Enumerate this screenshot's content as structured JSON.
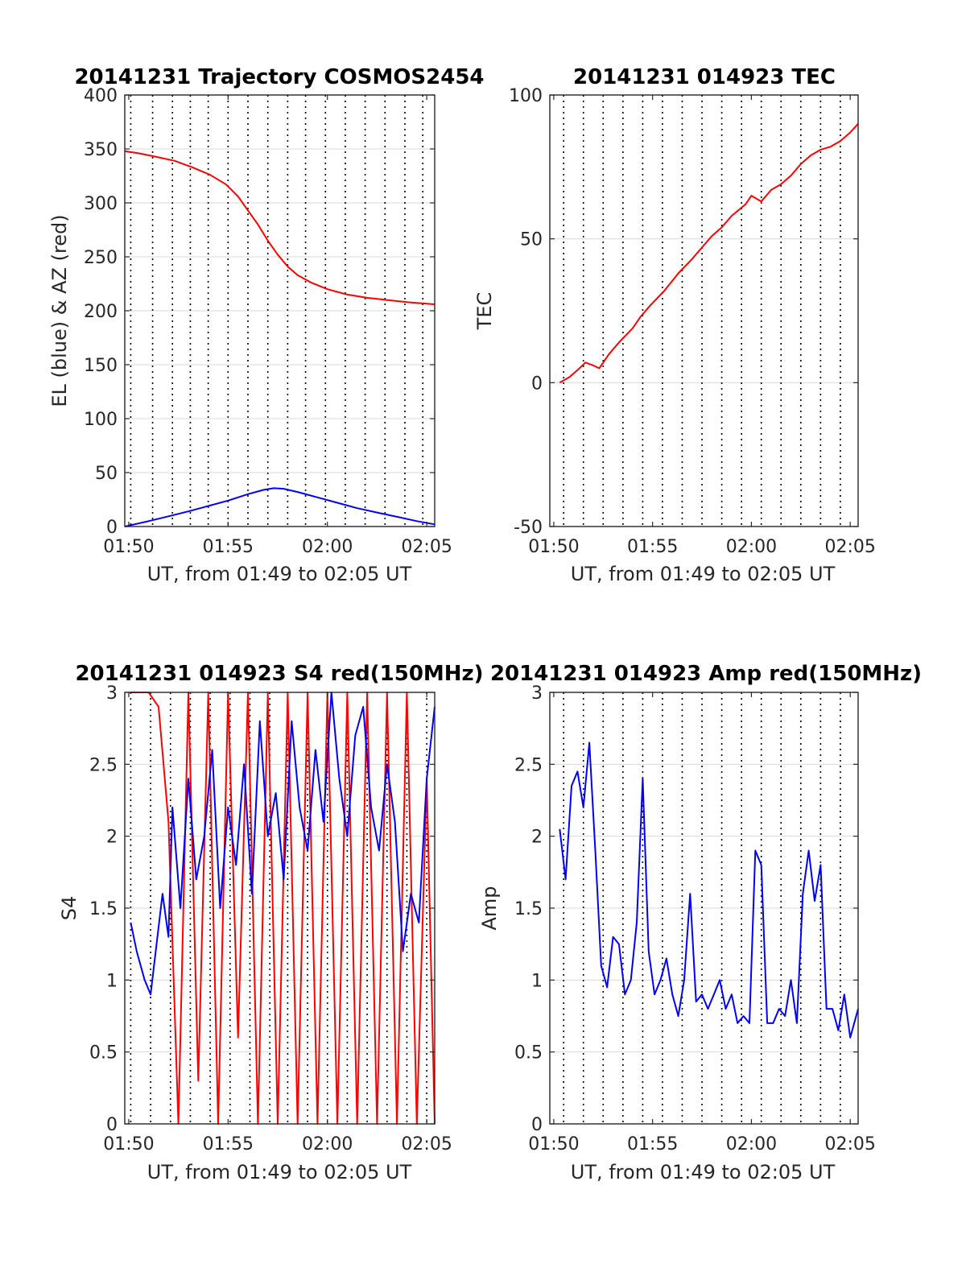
{
  "figure": {
    "background": "#ffffff",
    "grid_color": "#d9d9d9",
    "vline_color": "#000000",
    "axis_color": "#262626"
  },
  "chart_data": [
    {
      "type": "line",
      "title": "20141231 Trajectory COSMOS2454",
      "xlabel": "UT, from 01:49 to 02:05 UT",
      "ylabel": "EL (blue) & AZ (red)",
      "xlim": [
        109.8,
        125.4
      ],
      "ylim": [
        0,
        400
      ],
      "xticks": [
        110,
        115,
        120,
        125
      ],
      "xtick_labels": [
        "01:50",
        "01:55",
        "02:00",
        "02:05"
      ],
      "yticks": [
        0,
        50,
        100,
        150,
        200,
        250,
        300,
        350,
        400
      ],
      "ytick_labels": [
        "0",
        "50",
        "100",
        "150",
        "200",
        "250",
        "300",
        "350",
        "400"
      ],
      "vlines": [
        110.1,
        111.2,
        112.2,
        113.1,
        114.0,
        115.0,
        116.0,
        117.0,
        118.0,
        118.9,
        119.9,
        120.9,
        121.9,
        122.9,
        123.9,
        124.8
      ],
      "grid": true,
      "series": [
        {
          "color": "#ff0000",
          "x": [
            109.8,
            110.5,
            111.3,
            112.3,
            113.2,
            114.1,
            114.9,
            115.5,
            116.0,
            116.5,
            117.0,
            117.5,
            118.0,
            118.5,
            119.2,
            120.0,
            121.0,
            122.0,
            123.0,
            124.0,
            125.4
          ],
          "y": [
            348,
            346,
            343,
            339,
            333,
            326,
            317,
            306,
            293,
            280,
            265,
            252,
            241,
            233,
            226,
            220,
            215,
            212,
            210,
            208,
            206
          ]
        },
        {
          "color": "#0000ff",
          "x": [
            109.8,
            111.0,
            112.0,
            113.0,
            114.0,
            115.0,
            116.0,
            116.8,
            117.3,
            117.8,
            118.5,
            119.5,
            120.5,
            121.5,
            122.5,
            123.5,
            124.5,
            125.4
          ],
          "y": [
            0,
            5,
            9.5,
            14,
            19,
            24,
            30,
            34,
            35.5,
            35,
            32,
            27,
            22,
            17,
            13,
            9,
            5,
            2
          ]
        }
      ]
    },
    {
      "type": "line",
      "title": "20141231 014923 TEC",
      "xlabel": "UT, from 01:49 to 02:05 UT",
      "ylabel": "TEC",
      "xlim": [
        109.8,
        125.4
      ],
      "ylim": [
        -50,
        100
      ],
      "xticks": [
        110,
        115,
        120,
        125
      ],
      "xtick_labels": [
        "01:50",
        "01:55",
        "02:00",
        "02:05"
      ],
      "yticks": [
        -50,
        0,
        50,
        100
      ],
      "ytick_labels": [
        "-50",
        "0",
        "50",
        "100"
      ],
      "vlines": [
        110.5,
        111.5,
        112.5,
        113.5,
        114.5,
        115.5,
        116.5,
        117.5,
        118.5,
        119.5,
        120.5,
        121.5,
        122.5,
        123.5,
        124.5
      ],
      "grid": true,
      "series": [
        {
          "color": "#ff0000",
          "x": [
            110.3,
            110.8,
            111.3,
            111.6,
            112.0,
            112.3,
            112.8,
            113.3,
            114.0,
            114.4,
            114.9,
            115.6,
            116.3,
            117.0,
            117.5,
            118.0,
            118.5,
            119.0,
            119.7,
            120.0,
            120.5,
            121.0,
            121.5,
            122.0,
            122.5,
            123.0,
            123.5,
            124.0,
            124.5,
            125.0,
            125.4
          ],
          "y": [
            0,
            2,
            5,
            7,
            6,
            5,
            10,
            14,
            19,
            23,
            27,
            32,
            38,
            43,
            47,
            51,
            54,
            58,
            62,
            65,
            63,
            67,
            69,
            72,
            76,
            79,
            81,
            82,
            84,
            87,
            90
          ]
        }
      ]
    },
    {
      "type": "line",
      "title": "20141231 014923 S4 red(150MHz)",
      "xlabel": "UT, from 01:49 to 02:05 UT",
      "ylabel": "S4",
      "xlim": [
        109.8,
        125.4
      ],
      "ylim": [
        0,
        3
      ],
      "xticks": [
        110,
        115,
        120,
        125
      ],
      "xtick_labels": [
        "01:50",
        "01:55",
        "02:00",
        "02:05"
      ],
      "yticks": [
        0,
        0.5,
        1,
        1.5,
        2,
        2.5,
        3
      ],
      "ytick_labels": [
        "0",
        "0.5",
        "1",
        "1.5",
        "2",
        "2.5",
        "3"
      ],
      "vlines": [
        110.1,
        111.1,
        112.1,
        113.1,
        114.1,
        115.1,
        116.1,
        117.1,
        118.0,
        119.0,
        120.0,
        121.0,
        122.0,
        123.0,
        124.0,
        125.0
      ],
      "grid": true,
      "series": [
        {
          "color": "#ff0000",
          "x": [
            110.1,
            110.5,
            111.0,
            111.5,
            112.0,
            112.5,
            113.0,
            113.5,
            114.0,
            114.5,
            115.0,
            115.5,
            116.0,
            116.5,
            117.0,
            117.5,
            118.0,
            118.5,
            119.0,
            119.5,
            120.0,
            120.5,
            121.0,
            121.5,
            122.0,
            122.5,
            123.0,
            123.5,
            124.0,
            124.5,
            125.0,
            125.4
          ],
          "y": [
            3,
            3,
            3,
            2.9,
            2.1,
            0,
            3,
            0.3,
            3,
            0,
            3,
            0.6,
            3,
            0,
            3,
            0,
            3,
            0,
            3,
            0,
            3,
            0,
            3,
            0,
            3,
            0,
            3,
            0,
            3,
            0,
            2.4,
            0
          ]
        },
        {
          "color": "#0000ff",
          "x": [
            110.1,
            110.4,
            110.8,
            111.1,
            111.4,
            111.7,
            112.0,
            112.2,
            112.6,
            113.0,
            113.4,
            113.8,
            114.2,
            114.6,
            115.0,
            115.4,
            115.8,
            116.2,
            116.6,
            117.0,
            117.4,
            117.8,
            118.2,
            118.6,
            119.0,
            119.4,
            119.8,
            120.2,
            120.6,
            121.0,
            121.4,
            121.8,
            122.2,
            122.6,
            123.0,
            123.4,
            123.8,
            124.2,
            124.6,
            125.0,
            125.4
          ],
          "y": [
            1.4,
            1.2,
            1.0,
            0.9,
            1.25,
            1.6,
            1.3,
            2.2,
            1.5,
            2.4,
            1.7,
            2.0,
            2.6,
            1.5,
            2.2,
            1.8,
            2.5,
            1.6,
            2.8,
            2.0,
            2.3,
            1.7,
            2.8,
            2.2,
            1.9,
            2.6,
            2.1,
            3.0,
            2.4,
            2.0,
            2.7,
            2.9,
            2.2,
            1.9,
            2.5,
            2.1,
            1.2,
            1.6,
            1.4,
            2.4,
            2.9
          ]
        }
      ]
    },
    {
      "type": "line",
      "title": "20141231 014923 Amp red(150MHz)",
      "xlabel": "UT, from 01:49 to 02:05 UT",
      "ylabel": "Amp",
      "xlim": [
        109.8,
        125.4
      ],
      "ylim": [
        0,
        3
      ],
      "xticks": [
        110,
        115,
        120,
        125
      ],
      "xtick_labels": [
        "01:50",
        "01:55",
        "02:00",
        "02:05"
      ],
      "yticks": [
        0,
        0.5,
        1,
        1.5,
        2,
        2.5,
        3
      ],
      "ytick_labels": [
        "0",
        "0.5",
        "1",
        "1.5",
        "2",
        "2.5",
        "3"
      ],
      "vlines": [
        110.5,
        111.5,
        112.5,
        113.5,
        114.5,
        115.5,
        116.5,
        117.5,
        118.5,
        119.5,
        120.5,
        121.5,
        122.5,
        123.5,
        124.5
      ],
      "grid": true,
      "series": [
        {
          "color": "#0000ff",
          "x": [
            110.3,
            110.6,
            110.9,
            111.2,
            111.5,
            111.8,
            112.1,
            112.4,
            112.7,
            113.0,
            113.3,
            113.6,
            113.9,
            114.2,
            114.5,
            114.8,
            115.1,
            115.4,
            115.7,
            116.0,
            116.3,
            116.6,
            116.9,
            117.2,
            117.5,
            117.8,
            118.1,
            118.4,
            118.7,
            119.0,
            119.3,
            119.6,
            119.9,
            120.2,
            120.5,
            120.8,
            121.1,
            121.4,
            121.7,
            122.0,
            122.3,
            122.6,
            122.9,
            123.2,
            123.5,
            123.8,
            124.1,
            124.4,
            124.7,
            125.0,
            125.4
          ],
          "y": [
            2.05,
            1.7,
            2.35,
            2.45,
            2.2,
            2.65,
            1.9,
            1.1,
            0.95,
            1.3,
            1.25,
            0.9,
            1.0,
            1.4,
            2.4,
            1.2,
            0.9,
            1.0,
            1.15,
            0.9,
            0.75,
            1.0,
            1.6,
            0.85,
            0.9,
            0.8,
            0.9,
            1.0,
            0.8,
            0.9,
            0.7,
            0.75,
            0.7,
            1.9,
            1.8,
            0.7,
            0.7,
            0.8,
            0.75,
            1.0,
            0.7,
            1.6,
            1.9,
            1.55,
            1.8,
            0.8,
            0.8,
            0.65,
            0.9,
            0.6,
            0.8
          ]
        }
      ]
    }
  ]
}
